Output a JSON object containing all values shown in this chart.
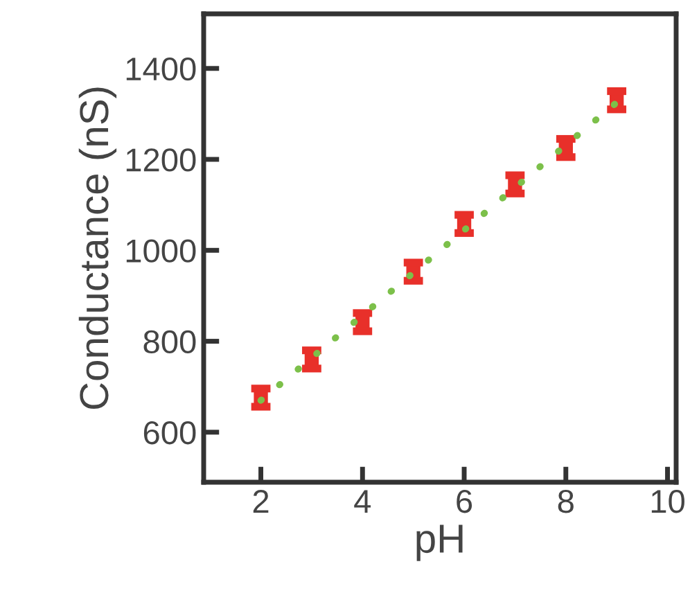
{
  "chart_data": {
    "type": "scatter",
    "xlabel": "pH",
    "ylabel": "Conductance (nS)",
    "xlim": [
      0.875,
      10.17
    ],
    "ylim": [
      490,
      1520
    ],
    "xticks": [
      2,
      4,
      6,
      8,
      10
    ],
    "yticks": [
      600,
      800,
      1000,
      1200,
      1400
    ],
    "grid": false,
    "legend": false,
    "series": [
      {
        "type": "line",
        "color": "#7cc04a",
        "x": [
          2,
          9
        ],
        "values": [
          670,
          1325
        ],
        "line_style": "dotted",
        "marker": "none"
      },
      {
        "color": "#e8302a",
        "x": [
          2,
          3,
          4,
          5,
          6,
          7,
          8,
          9
        ],
        "values": [
          676,
          760,
          842,
          953,
          1058,
          1145,
          1225,
          1330
        ],
        "errors": [
          20,
          20,
          20,
          20,
          20,
          20,
          20,
          20
        ],
        "marker": "square"
      }
    ]
  }
}
